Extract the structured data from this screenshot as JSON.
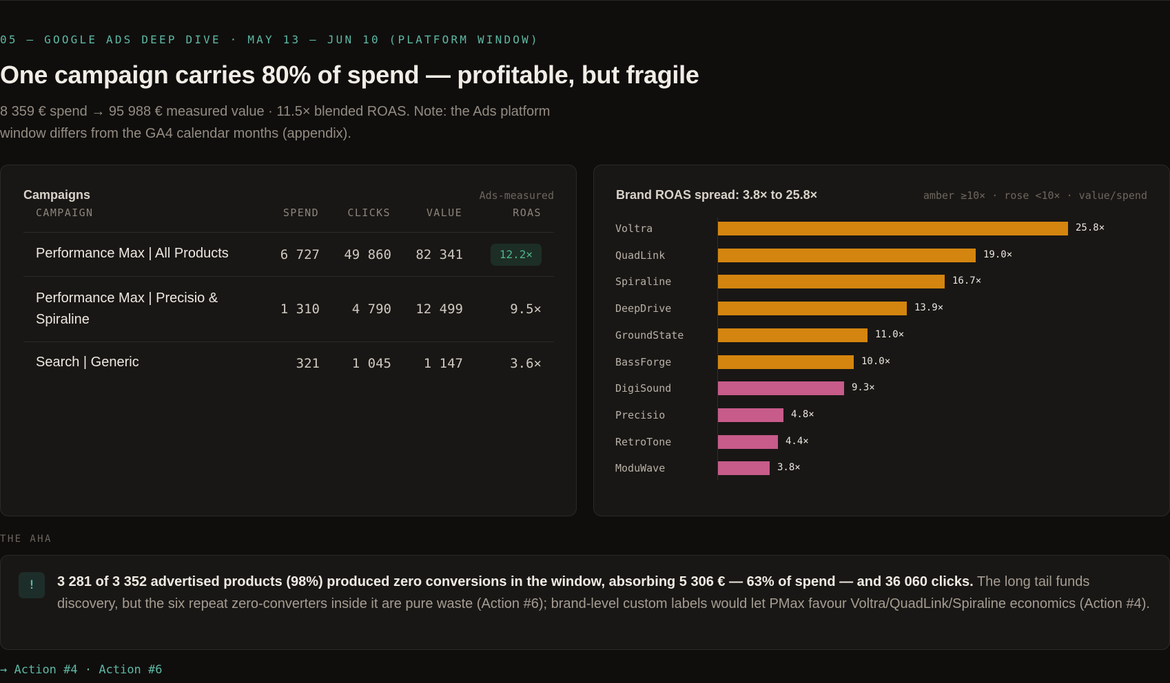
{
  "header": {
    "eyebrow": "05 — GOOGLE ADS DEEP DIVE · MAY 13 – JUN 10 (PLATFORM WINDOW)",
    "title": "One campaign carries 80% of spend — profitable, but fragile",
    "subtitle": "8 359 € spend → 95 988 € measured value · 11.5× blended ROAS. Note: the Ads platform window differs from the GA4 calendar months (appendix)."
  },
  "campaigns": {
    "title": "Campaigns",
    "note": "Ads-measured",
    "columns": [
      "CAMPAIGN",
      "SPEND",
      "CLICKS",
      "VALUE",
      "ROAS"
    ],
    "rows": [
      {
        "name": "Performance Max | All Products",
        "spend": "6 727",
        "clicks": "49 860",
        "value": "82 341",
        "roas": "12.2×",
        "highlight": true
      },
      {
        "name": "Performance Max | Precisio & Spiraline",
        "spend": "1 310",
        "clicks": "4 790",
        "value": "12 499",
        "roas": "9.5×",
        "highlight": false
      },
      {
        "name": "Search | Generic",
        "spend": "321",
        "clicks": "1 045",
        "value": "1 147",
        "roas": "3.6×",
        "highlight": false
      }
    ]
  },
  "roas_chart": {
    "title": "Brand ROAS spread: 3.8× to 25.8×",
    "legend_note": "amber ≥10× · rose <10× · value/spend"
  },
  "chart_data": {
    "type": "bar",
    "orientation": "horizontal",
    "title": "Brand ROAS spread: 3.8× to 25.8×",
    "categories": [
      "Voltra",
      "QuadLink",
      "Spiraline",
      "DeepDrive",
      "GroundState",
      "BassForge",
      "DigiSound",
      "Precisio",
      "RetroTone",
      "ModuWave"
    ],
    "values": [
      25.8,
      19.0,
      16.7,
      13.9,
      11.0,
      10.0,
      9.3,
      4.8,
      4.4,
      3.8
    ],
    "labels": [
      "25.8×",
      "19.0×",
      "16.7×",
      "13.9×",
      "11.0×",
      "10.0×",
      "9.3×",
      "4.8×",
      "4.4×",
      "3.8×"
    ],
    "threshold": 10,
    "colors": {
      "high": "#d4850f",
      "low": "#c75b8a"
    },
    "xlim": [
      0,
      28
    ]
  },
  "aha": {
    "label": "THE AHA",
    "icon": "!",
    "bold": "3 281 of 3 352 advertised products (98%) produced zero conversions in the window, absorbing 5 306 € — 63% of spend — and 36 060 clicks.",
    "rest": " The long tail funds discovery, but the six repeat zero-converters inside it are pure waste (Action #6); brand-level custom labels would let PMax favour Voltra/QuadLink/Spiraline economics (Action #4)."
  },
  "actions": {
    "arrow": "→",
    "a1": "Action #4",
    "sep": "·",
    "a2": "Action #6"
  }
}
